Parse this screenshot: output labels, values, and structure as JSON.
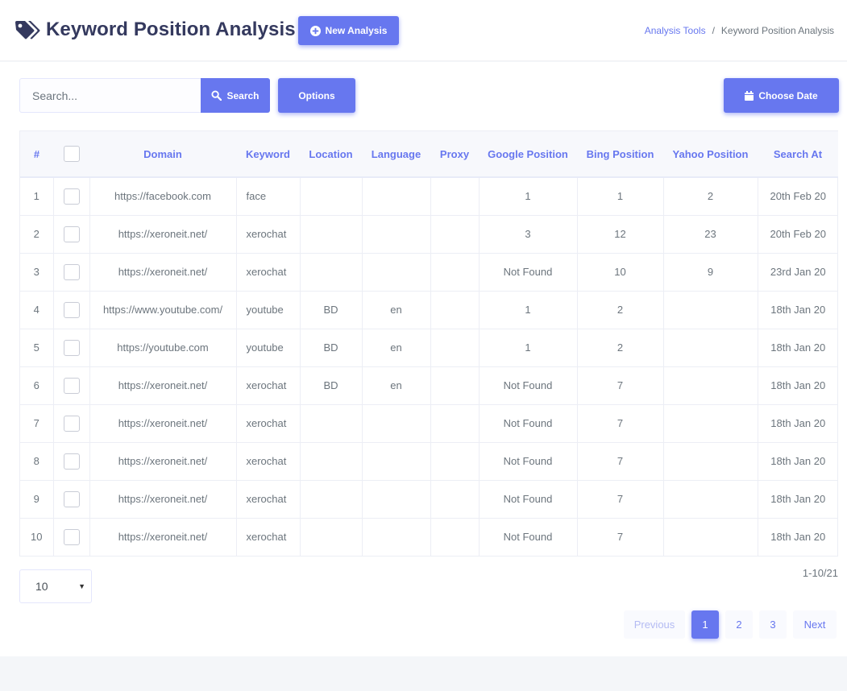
{
  "header": {
    "title": "Keyword Position Analysis",
    "new_button": "New Analysis",
    "breadcrumb": {
      "link": "Analysis Tools",
      "separator": "/",
      "current": "Keyword Position Analysis"
    }
  },
  "toolbar": {
    "search_placeholder": "Search...",
    "search_button": "Search",
    "options_button": "Options",
    "date_button": "Choose Date"
  },
  "table": {
    "columns": [
      "#",
      "",
      "Domain",
      "Keyword",
      "Location",
      "Language",
      "Proxy",
      "Google Position",
      "Bing Position",
      "Yahoo Position",
      "Search At"
    ],
    "rows": [
      [
        "1",
        "https://facebook.com",
        "face",
        "",
        "",
        "",
        "1",
        "1",
        "2",
        "20th Feb 20"
      ],
      [
        "2",
        "https://xeroneit.net/",
        "xerochat",
        "",
        "",
        "",
        "3",
        "12",
        "23",
        "20th Feb 20"
      ],
      [
        "3",
        "https://xeroneit.net/",
        "xerochat",
        "",
        "",
        "",
        "Not Found",
        "10",
        "9",
        "23rd Jan 20"
      ],
      [
        "4",
        "https://www.youtube.com/",
        "youtube",
        "BD",
        "en",
        "",
        "1",
        "2",
        "",
        "18th Jan 20"
      ],
      [
        "5",
        "https://youtube.com",
        "youtube",
        "BD",
        "en",
        "",
        "1",
        "2",
        "",
        "18th Jan 20"
      ],
      [
        "6",
        "https://xeroneit.net/",
        "xerochat",
        "BD",
        "en",
        "",
        "Not Found",
        "7",
        "",
        "18th Jan 20"
      ],
      [
        "7",
        "https://xeroneit.net/",
        "xerochat",
        "",
        "",
        "",
        "Not Found",
        "7",
        "",
        "18th Jan 20"
      ],
      [
        "8",
        "https://xeroneit.net/",
        "xerochat",
        "",
        "",
        "",
        "Not Found",
        "7",
        "",
        "18th Jan 20"
      ],
      [
        "9",
        "https://xeroneit.net/",
        "xerochat",
        "",
        "",
        "",
        "Not Found",
        "7",
        "",
        "18th Jan 20"
      ],
      [
        "10",
        "https://xeroneit.net/",
        "xerochat",
        "",
        "",
        "",
        "Not Found",
        "7",
        "",
        "18th Jan 20"
      ]
    ]
  },
  "footer": {
    "per_page": "10",
    "range": "1-10/21",
    "pagination": {
      "previous": "Previous",
      "pages": [
        "1",
        "2",
        "3"
      ],
      "active": "1",
      "next": "Next"
    }
  },
  "colors": {
    "accent": "#6777ef",
    "heading": "#34395e",
    "text": "#6c757d"
  },
  "icons": [
    "tags-icon",
    "plus-circle-icon",
    "search-icon",
    "calendar-icon",
    "caret-down-icon"
  ]
}
